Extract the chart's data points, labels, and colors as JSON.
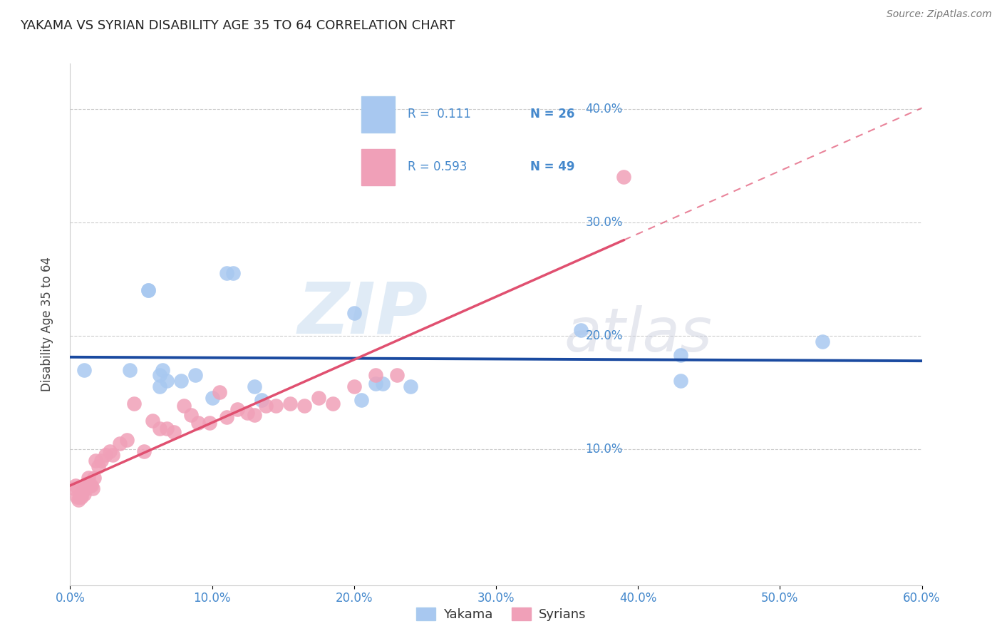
{
  "title": "YAKAMA VS SYRIAN DISABILITY AGE 35 TO 64 CORRELATION CHART",
  "source": "Source: ZipAtlas.com",
  "ylabel": "Disability Age 35 to 64",
  "xlim": [
    0.0,
    0.6
  ],
  "ylim": [
    -0.02,
    0.44
  ],
  "xticks": [
    0.0,
    0.1,
    0.2,
    0.3,
    0.4,
    0.5,
    0.6
  ],
  "yticks": [
    0.1,
    0.2,
    0.3,
    0.4
  ],
  "legend_r_yakama": "0.111",
  "legend_n_yakama": "26",
  "legend_r_syrian": "0.593",
  "legend_n_syrian": "49",
  "yakama_color": "#A8C8F0",
  "syrian_color": "#F0A0B8",
  "yakama_line_color": "#1A4AA0",
  "syrian_line_color": "#E05070",
  "background_color": "#ffffff",
  "watermark_zip": "ZIP",
  "watermark_atlas": "atlas",
  "yakama_points_x": [
    0.01,
    0.042,
    0.055,
    0.055,
    0.063,
    0.063,
    0.065,
    0.068,
    0.078,
    0.088,
    0.1,
    0.11,
    0.115,
    0.13,
    0.135,
    0.2,
    0.205,
    0.215,
    0.22,
    0.24,
    0.36,
    0.43,
    0.43,
    0.53
  ],
  "yakama_points_y": [
    0.17,
    0.17,
    0.24,
    0.24,
    0.165,
    0.155,
    0.17,
    0.16,
    0.16,
    0.165,
    0.145,
    0.255,
    0.255,
    0.155,
    0.143,
    0.22,
    0.143,
    0.158,
    0.158,
    0.155,
    0.205,
    0.183,
    0.16,
    0.195
  ],
  "syrian_points_x": [
    0.003,
    0.004,
    0.005,
    0.006,
    0.007,
    0.008,
    0.008,
    0.009,
    0.01,
    0.011,
    0.012,
    0.013,
    0.014,
    0.015,
    0.016,
    0.017,
    0.018,
    0.02,
    0.022,
    0.025,
    0.028,
    0.03,
    0.035,
    0.04,
    0.045,
    0.052,
    0.058,
    0.063,
    0.068,
    0.073,
    0.08,
    0.085,
    0.09,
    0.098,
    0.105,
    0.11,
    0.118,
    0.125,
    0.13,
    0.138,
    0.145,
    0.155,
    0.165,
    0.175,
    0.185,
    0.2,
    0.215,
    0.23,
    0.39
  ],
  "syrian_points_y": [
    0.065,
    0.068,
    0.058,
    0.055,
    0.058,
    0.058,
    0.06,
    0.063,
    0.06,
    0.065,
    0.07,
    0.075,
    0.068,
    0.068,
    0.065,
    0.075,
    0.09,
    0.085,
    0.09,
    0.095,
    0.098,
    0.095,
    0.105,
    0.108,
    0.14,
    0.098,
    0.125,
    0.118,
    0.118,
    0.115,
    0.138,
    0.13,
    0.123,
    0.123,
    0.15,
    0.128,
    0.135,
    0.132,
    0.13,
    0.138,
    0.138,
    0.14,
    0.138,
    0.145,
    0.14,
    0.155,
    0.165,
    0.165,
    0.34
  ]
}
